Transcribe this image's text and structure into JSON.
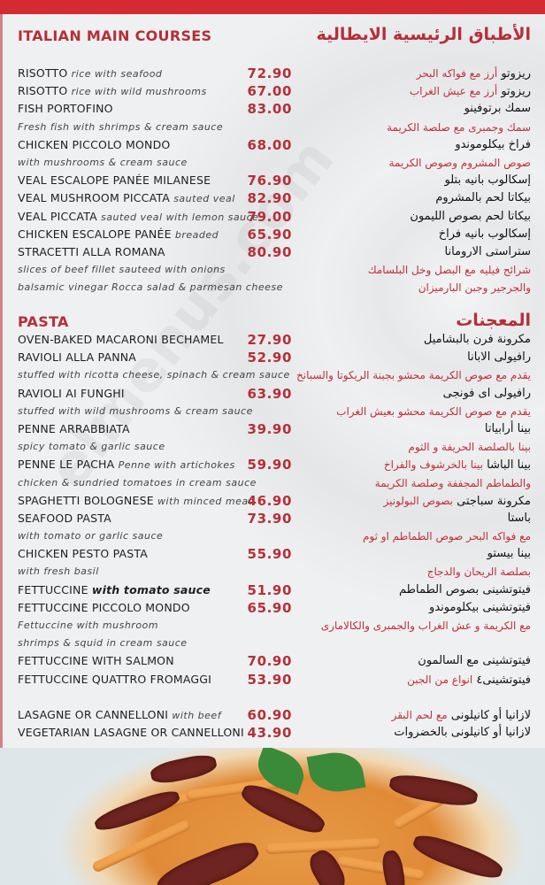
{
  "watermark": "elmenus.com",
  "colors": {
    "accent": "#b52f38",
    "top_bar": "#d42a32"
  },
  "sections": [
    {
      "title_en": "ITALIAN MAIN COURSES",
      "title_ar": "الأطباق الرئيسية الايطالية",
      "rows": [
        {
          "name": "RISOTTO",
          "desc": "rice with seafood",
          "price": "72.90",
          "ar_name": "ريزوتو",
          "ar_desc": "أرز مع فواكه البحر"
        },
        {
          "name": "RISOTTO",
          "desc": "rice with wild mushrooms",
          "price": "67.00",
          "ar_name": "ريزوتو",
          "ar_desc": "أرز مع عيش الغراب"
        },
        {
          "name": "FISH PORTOFINO",
          "price": "83.00",
          "ar_name": "سمك برتوفينو"
        },
        {
          "type": "desc",
          "desc": "Fresh fish with shrimps & cream sauce",
          "ar_desc": "سمك وجمبرى مع صلصة الكريمة"
        },
        {
          "name": "CHICKEN PICCOLO MONDO",
          "price": "68.00",
          "ar_name": "فراخ بيكلوموندو"
        },
        {
          "type": "desc",
          "desc": "with mushrooms & cream sauce",
          "ar_desc": "صوص المشروم وصوص الكريمة"
        },
        {
          "name": "VEAL ESCALOPE PANÉE MILANESE",
          "price": "76.90",
          "ar_name": "إسكالوب بانيه بتلو"
        },
        {
          "name": "VEAL MUSHROOM PICCATA",
          "desc": "sauted veal",
          "price": "82.90",
          "ar_name": "بيكاتا لحم بالمشروم"
        },
        {
          "name": "VEAL PICCATA",
          "desc": "sauted veal with lemon sauce",
          "price": "79.00",
          "ar_name": "بيكاتا لحم بصوص الليمون"
        },
        {
          "name": "CHICKEN ESCALOPE PANÉE",
          "desc": "breaded",
          "price": "65.90",
          "ar_name": "إسكالوب بانيه فراخ"
        },
        {
          "name": "STRACETTI ALLA ROMANA",
          "price": "80.90",
          "ar_name": "ستراستى الارومانا"
        },
        {
          "type": "desc",
          "desc": "slices of beef fillet sauteed with onions",
          "ar_desc": "شرائح فيليه مع البصل وخل البلسامك"
        },
        {
          "type": "desc",
          "desc": "balsamic vinegar Rocca salad & parmesan cheese",
          "ar_desc": "والجرجير وجبن البارميزان"
        }
      ]
    },
    {
      "title_en": "PASTA",
      "title_ar": "المعجنات",
      "rows": [
        {
          "name": "OVEN-BAKED MACARONI BECHAMEL",
          "price": "27.90",
          "ar_name": "مكرونة فرن بالبشاميل"
        },
        {
          "name": "RAVIOLI ALLA PANNA",
          "price": "52.90",
          "ar_name": "رافيولى الابانا"
        },
        {
          "type": "desc",
          "desc": "stuffed with ricotta cheese, spinach & cream sauce",
          "ar_desc": "يقدم مع صوص الكريمة محشو بجبنة الريكوتا والسبانخ"
        },
        {
          "name": "RAVIOLI AI FUNGHI",
          "price": "63.90",
          "ar_name": "رافيولى اى فونجى"
        },
        {
          "type": "desc",
          "desc": "stuffed with wild mushrooms & cream sauce",
          "ar_desc": "يقدم مع صوص الكريمة محشو بعيش الغراب"
        },
        {
          "name": "PENNE ARRABBIATA",
          "price": "39.90",
          "ar_name": "بينا أرابياتا"
        },
        {
          "type": "desc",
          "desc": "spicy tomato & garlic sauce",
          "ar_desc": "بينا بالصلصة الحريفة و الثوم"
        },
        {
          "name": "PENNE LE PACHA",
          "desc": "Penne with artichokes",
          "price": "59.90",
          "ar_name": "بينا الباشا",
          "ar_desc": "بينا بالخرشوف والفراخ"
        },
        {
          "type": "desc",
          "desc": "chicken & sundried tomatoes in cream sauce",
          "ar_desc": "والطماطم المجففة وصلصة الكريمة"
        },
        {
          "name": "SPAGHETTI BOLOGNESE",
          "desc": "with minced meat",
          "price": "46.90",
          "ar_name": "مكرونة سباجتى",
          "ar_desc": "بصوص البولونيز"
        },
        {
          "name": "SEAFOOD PASTA",
          "price": "73.90",
          "ar_name": "باستا"
        },
        {
          "type": "desc",
          "desc": "with tomato or garlic sauce",
          "ar_desc": "مع فواكه البحر صوص الطماطم او ثوم"
        },
        {
          "name": "CHICKEN PESTO PASTA",
          "price": "55.90",
          "ar_name": "بينا بيستو"
        },
        {
          "type": "desc",
          "desc": "with fresh basil",
          "ar_desc": "بصلصة الريحان والدجاج"
        },
        {
          "name": "FETTUCCINE",
          "desc": "with tomato sauce",
          "desc_bold": true,
          "price": "51.90",
          "ar_name": "فيتوتشينى بصوص الطماطم"
        },
        {
          "name": "FETTUCCINE PICCOLO MONDO",
          "price": "65.90",
          "ar_name": "فيتوتشينى بيكلوموندو"
        },
        {
          "type": "desc",
          "desc": "Fettuccine with mushroom",
          "ar_desc": "مع الكريمة و عش الغراب والجمبرى والكالامارى"
        },
        {
          "type": "desc",
          "desc": " shrimps & squid in cream sauce"
        },
        {
          "name": "FETTUCCINE WITH SALMON",
          "price": "70.90",
          "ar_name": "فيتوتشينى مع السالمون"
        },
        {
          "name": "FETTUCCINE QUATTRO FROMAGGI",
          "price": "53.90",
          "ar_name": "فيتوتشينى٤",
          "ar_desc": "انواع من الجبن"
        },
        {
          "type": "spacer"
        },
        {
          "name": "LASAGNE OR CANNELLONI",
          "desc": "with beef",
          "price": "60.90",
          "ar_name": "لازانيا أو كانيلونى",
          "ar_desc": "مع لحم البقر"
        },
        {
          "name": "VEGETARIAN LASAGNE OR CANNELLONI",
          "price": "43.90",
          "ar_name": "لازانيا أو كانيلونى بالخضروات"
        }
      ]
    }
  ]
}
